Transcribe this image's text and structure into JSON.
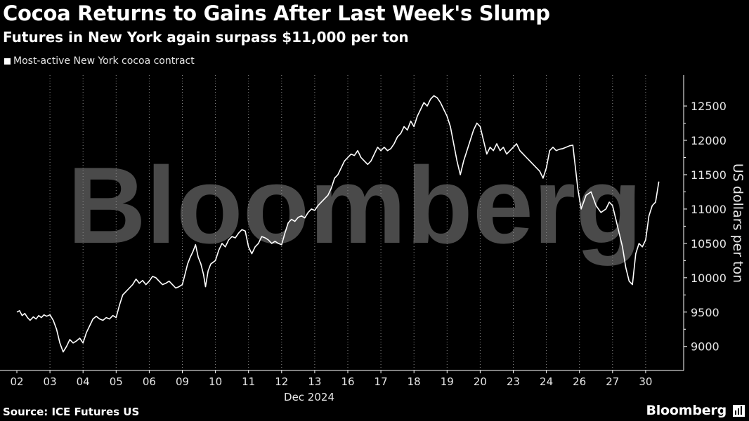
{
  "header": {
    "title": "Cocoa Returns to Gains After Last Week's Slump",
    "subtitle": "Futures in New York again surpass $11,000 per ton"
  },
  "legend": {
    "label": "Most-active New York cocoa contract",
    "color": "#ffffff"
  },
  "footer": {
    "source": "Source: ICE Futures US",
    "brand": "Bloomberg"
  },
  "watermark": "Bloomberg",
  "chart_data": {
    "type": "line",
    "categories": [
      "02",
      "03",
      "04",
      "05",
      "06",
      "09",
      "10",
      "11",
      "12",
      "13",
      "16",
      "17",
      "18",
      "19",
      "20",
      "23",
      "24",
      "26",
      "27",
      "30"
    ],
    "x_axis_sublabel": "Dec 2024",
    "ylabel": "US dollars per ton",
    "y_ticks": [
      9000,
      9500,
      10000,
      10500,
      11000,
      11500,
      12000,
      12500
    ],
    "ylim": [
      8650,
      12950
    ],
    "grid": "vertical dotted",
    "series": [
      {
        "name": "Most-active New York cocoa contract",
        "color": "#ffffff",
        "points": [
          [
            0.0,
            9500
          ],
          [
            0.08,
            9520
          ],
          [
            0.16,
            9450
          ],
          [
            0.24,
            9480
          ],
          [
            0.32,
            9420
          ],
          [
            0.4,
            9380
          ],
          [
            0.5,
            9430
          ],
          [
            0.58,
            9400
          ],
          [
            0.66,
            9450
          ],
          [
            0.74,
            9420
          ],
          [
            0.82,
            9460
          ],
          [
            0.9,
            9440
          ],
          [
            1.0,
            9460
          ],
          [
            1.1,
            9380
          ],
          [
            1.2,
            9250
          ],
          [
            1.3,
            9050
          ],
          [
            1.4,
            8920
          ],
          [
            1.5,
            9000
          ],
          [
            1.6,
            9100
          ],
          [
            1.7,
            9050
          ],
          [
            1.8,
            9080
          ],
          [
            1.9,
            9120
          ],
          [
            2.0,
            9050
          ],
          [
            2.1,
            9200
          ],
          [
            2.2,
            9300
          ],
          [
            2.3,
            9400
          ],
          [
            2.4,
            9440
          ],
          [
            2.5,
            9400
          ],
          [
            2.6,
            9380
          ],
          [
            2.7,
            9420
          ],
          [
            2.8,
            9400
          ],
          [
            2.9,
            9450
          ],
          [
            3.0,
            9420
          ],
          [
            3.1,
            9600
          ],
          [
            3.2,
            9750
          ],
          [
            3.3,
            9800
          ],
          [
            3.4,
            9850
          ],
          [
            3.5,
            9900
          ],
          [
            3.6,
            9980
          ],
          [
            3.7,
            9920
          ],
          [
            3.8,
            9960
          ],
          [
            3.9,
            9900
          ],
          [
            4.0,
            9950
          ],
          [
            4.1,
            10020
          ],
          [
            4.2,
            10000
          ],
          [
            4.3,
            9950
          ],
          [
            4.4,
            9900
          ],
          [
            4.5,
            9920
          ],
          [
            4.6,
            9950
          ],
          [
            4.7,
            9900
          ],
          [
            4.8,
            9850
          ],
          [
            4.9,
            9870
          ],
          [
            5.0,
            9900
          ],
          [
            5.08,
            10050
          ],
          [
            5.16,
            10200
          ],
          [
            5.24,
            10300
          ],
          [
            5.32,
            10380
          ],
          [
            5.4,
            10480
          ],
          [
            5.48,
            10300
          ],
          [
            5.56,
            10200
          ],
          [
            5.64,
            10050
          ],
          [
            5.7,
            9870
          ],
          [
            5.78,
            10100
          ],
          [
            5.86,
            10200
          ],
          [
            6.0,
            10250
          ],
          [
            6.1,
            10400
          ],
          [
            6.2,
            10500
          ],
          [
            6.3,
            10450
          ],
          [
            6.4,
            10550
          ],
          [
            6.5,
            10600
          ],
          [
            6.6,
            10580
          ],
          [
            6.7,
            10650
          ],
          [
            6.8,
            10700
          ],
          [
            6.9,
            10680
          ],
          [
            7.0,
            10450
          ],
          [
            7.1,
            10350
          ],
          [
            7.2,
            10450
          ],
          [
            7.3,
            10500
          ],
          [
            7.4,
            10600
          ],
          [
            7.5,
            10580
          ],
          [
            7.6,
            10550
          ],
          [
            7.7,
            10500
          ],
          [
            7.8,
            10530
          ],
          [
            7.9,
            10500
          ],
          [
            8.0,
            10480
          ],
          [
            8.1,
            10650
          ],
          [
            8.2,
            10800
          ],
          [
            8.3,
            10850
          ],
          [
            8.4,
            10820
          ],
          [
            8.5,
            10880
          ],
          [
            8.6,
            10900
          ],
          [
            8.7,
            10870
          ],
          [
            8.8,
            10950
          ],
          [
            8.9,
            11000
          ],
          [
            9.0,
            10980
          ],
          [
            9.1,
            11050
          ],
          [
            9.2,
            11100
          ],
          [
            9.3,
            11150
          ],
          [
            9.4,
            11200
          ],
          [
            9.5,
            11300
          ],
          [
            9.6,
            11450
          ],
          [
            9.7,
            11500
          ],
          [
            9.8,
            11600
          ],
          [
            9.9,
            11700
          ],
          [
            10.0,
            11750
          ],
          [
            10.1,
            11800
          ],
          [
            10.2,
            11780
          ],
          [
            10.3,
            11850
          ],
          [
            10.4,
            11750
          ],
          [
            10.5,
            11700
          ],
          [
            10.6,
            11650
          ],
          [
            10.7,
            11700
          ],
          [
            10.8,
            11800
          ],
          [
            10.9,
            11900
          ],
          [
            11.0,
            11850
          ],
          [
            11.1,
            11900
          ],
          [
            11.2,
            11850
          ],
          [
            11.3,
            11880
          ],
          [
            11.4,
            11950
          ],
          [
            11.5,
            12050
          ],
          [
            11.6,
            12100
          ],
          [
            11.7,
            12200
          ],
          [
            11.8,
            12150
          ],
          [
            11.9,
            12280
          ],
          [
            12.0,
            12200
          ],
          [
            12.1,
            12350
          ],
          [
            12.2,
            12450
          ],
          [
            12.3,
            12550
          ],
          [
            12.4,
            12500
          ],
          [
            12.5,
            12600
          ],
          [
            12.6,
            12650
          ],
          [
            12.7,
            12620
          ],
          [
            12.8,
            12550
          ],
          [
            12.9,
            12450
          ],
          [
            13.0,
            12350
          ],
          [
            13.1,
            12200
          ],
          [
            13.2,
            11950
          ],
          [
            13.3,
            11700
          ],
          [
            13.4,
            11500
          ],
          [
            13.5,
            11700
          ],
          [
            13.6,
            11850
          ],
          [
            13.7,
            12000
          ],
          [
            13.8,
            12150
          ],
          [
            13.9,
            12250
          ],
          [
            14.0,
            12200
          ],
          [
            14.1,
            12000
          ],
          [
            14.2,
            11800
          ],
          [
            14.3,
            11900
          ],
          [
            14.4,
            11850
          ],
          [
            14.5,
            11950
          ],
          [
            14.6,
            11850
          ],
          [
            14.7,
            11900
          ],
          [
            14.8,
            11800
          ],
          [
            14.9,
            11850
          ],
          [
            15.0,
            11900
          ],
          [
            15.1,
            11950
          ],
          [
            15.2,
            11850
          ],
          [
            15.3,
            11800
          ],
          [
            15.4,
            11750
          ],
          [
            15.5,
            11700
          ],
          [
            15.6,
            11650
          ],
          [
            15.7,
            11600
          ],
          [
            15.8,
            11550
          ],
          [
            15.9,
            11450
          ],
          [
            16.0,
            11600
          ],
          [
            16.1,
            11850
          ],
          [
            16.2,
            11900
          ],
          [
            16.3,
            11850
          ],
          [
            16.4,
            11870
          ],
          [
            16.5,
            11880
          ],
          [
            16.6,
            11900
          ],
          [
            16.7,
            11920
          ],
          [
            16.8,
            11930
          ],
          [
            16.95,
            11300
          ],
          [
            17.05,
            11000
          ],
          [
            17.2,
            11200
          ],
          [
            17.35,
            11250
          ],
          [
            17.5,
            11050
          ],
          [
            17.65,
            10950
          ],
          [
            17.8,
            11000
          ],
          [
            17.9,
            11100
          ],
          [
            18.0,
            11050
          ],
          [
            18.1,
            10850
          ],
          [
            18.2,
            10650
          ],
          [
            18.3,
            10450
          ],
          [
            18.4,
            10150
          ],
          [
            18.5,
            9950
          ],
          [
            18.6,
            9900
          ],
          [
            18.7,
            10350
          ],
          [
            18.8,
            10500
          ],
          [
            18.9,
            10450
          ],
          [
            19.0,
            10550
          ],
          [
            19.1,
            10900
          ],
          [
            19.2,
            11050
          ],
          [
            19.3,
            11100
          ],
          [
            19.4,
            11400
          ]
        ]
      }
    ]
  }
}
